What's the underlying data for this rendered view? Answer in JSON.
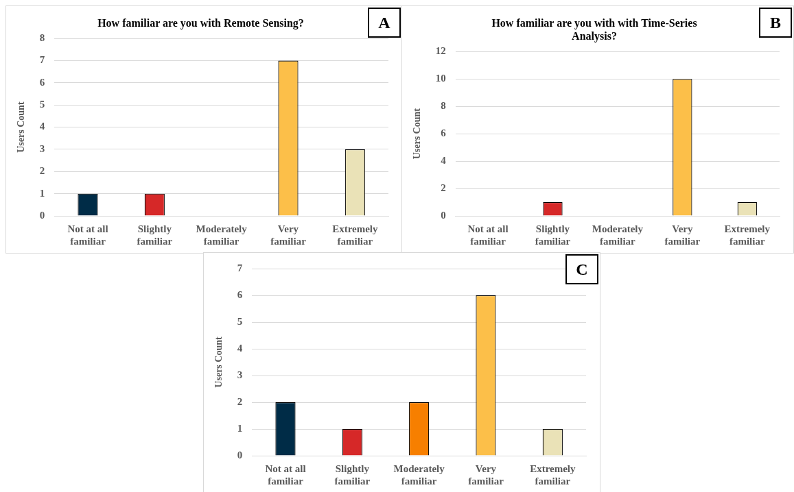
{
  "chart_data": [
    {
      "type": "bar",
      "title": "How familiar are you with Remote Sensing?",
      "ylabel": "Users Count",
      "categories": [
        "Not at all familiar",
        "Slightly familiar",
        "Moderately familiar",
        "Very familiar",
        "Extremely familiar"
      ],
      "values": [
        1,
        1,
        0,
        7,
        3
      ],
      "colors": [
        "#002c47",
        "#d62828",
        "#f77f00",
        "#fcbf49",
        "#eae2b7"
      ],
      "ylim": [
        0,
        8
      ],
      "yticks": [
        0,
        1,
        2,
        3,
        4,
        5,
        6,
        7,
        8
      ],
      "grid": "y",
      "legend": false,
      "annotations": [
        "A"
      ]
    },
    {
      "type": "bar",
      "title": "How familiar are you with with Time-Series Analysis?",
      "ylabel": "Users Count",
      "categories": [
        "Not at all familiar",
        "Slightly familiar",
        "Moderately familiar",
        "Very familiar",
        "Extremely familiar"
      ],
      "values": [
        0,
        1,
        0,
        10,
        1
      ],
      "colors": [
        "#002c47",
        "#d62828",
        "#f77f00",
        "#fcbf49",
        "#eae2b7"
      ],
      "ylim": [
        0,
        12
      ],
      "yticks": [
        0,
        2,
        4,
        6,
        8,
        10,
        12
      ],
      "grid": "y",
      "legend": false,
      "annotations": [
        "B"
      ]
    },
    {
      "type": "bar",
      "ylabel": "Users Count",
      "categories": [
        "Not at all familiar",
        "Slightly familiar",
        "Moderately familiar",
        "Very familiar",
        "Extremely familiar"
      ],
      "values": [
        2,
        1,
        2,
        6,
        1
      ],
      "colors": [
        "#002c47",
        "#d62828",
        "#f77f00",
        "#fcbf49",
        "#eae2b7"
      ],
      "ylim": [
        0,
        7
      ],
      "yticks": [
        0,
        1,
        2,
        3,
        4,
        5,
        6,
        7
      ],
      "grid": "y",
      "legend": false,
      "annotations": [
        "C"
      ]
    }
  ]
}
